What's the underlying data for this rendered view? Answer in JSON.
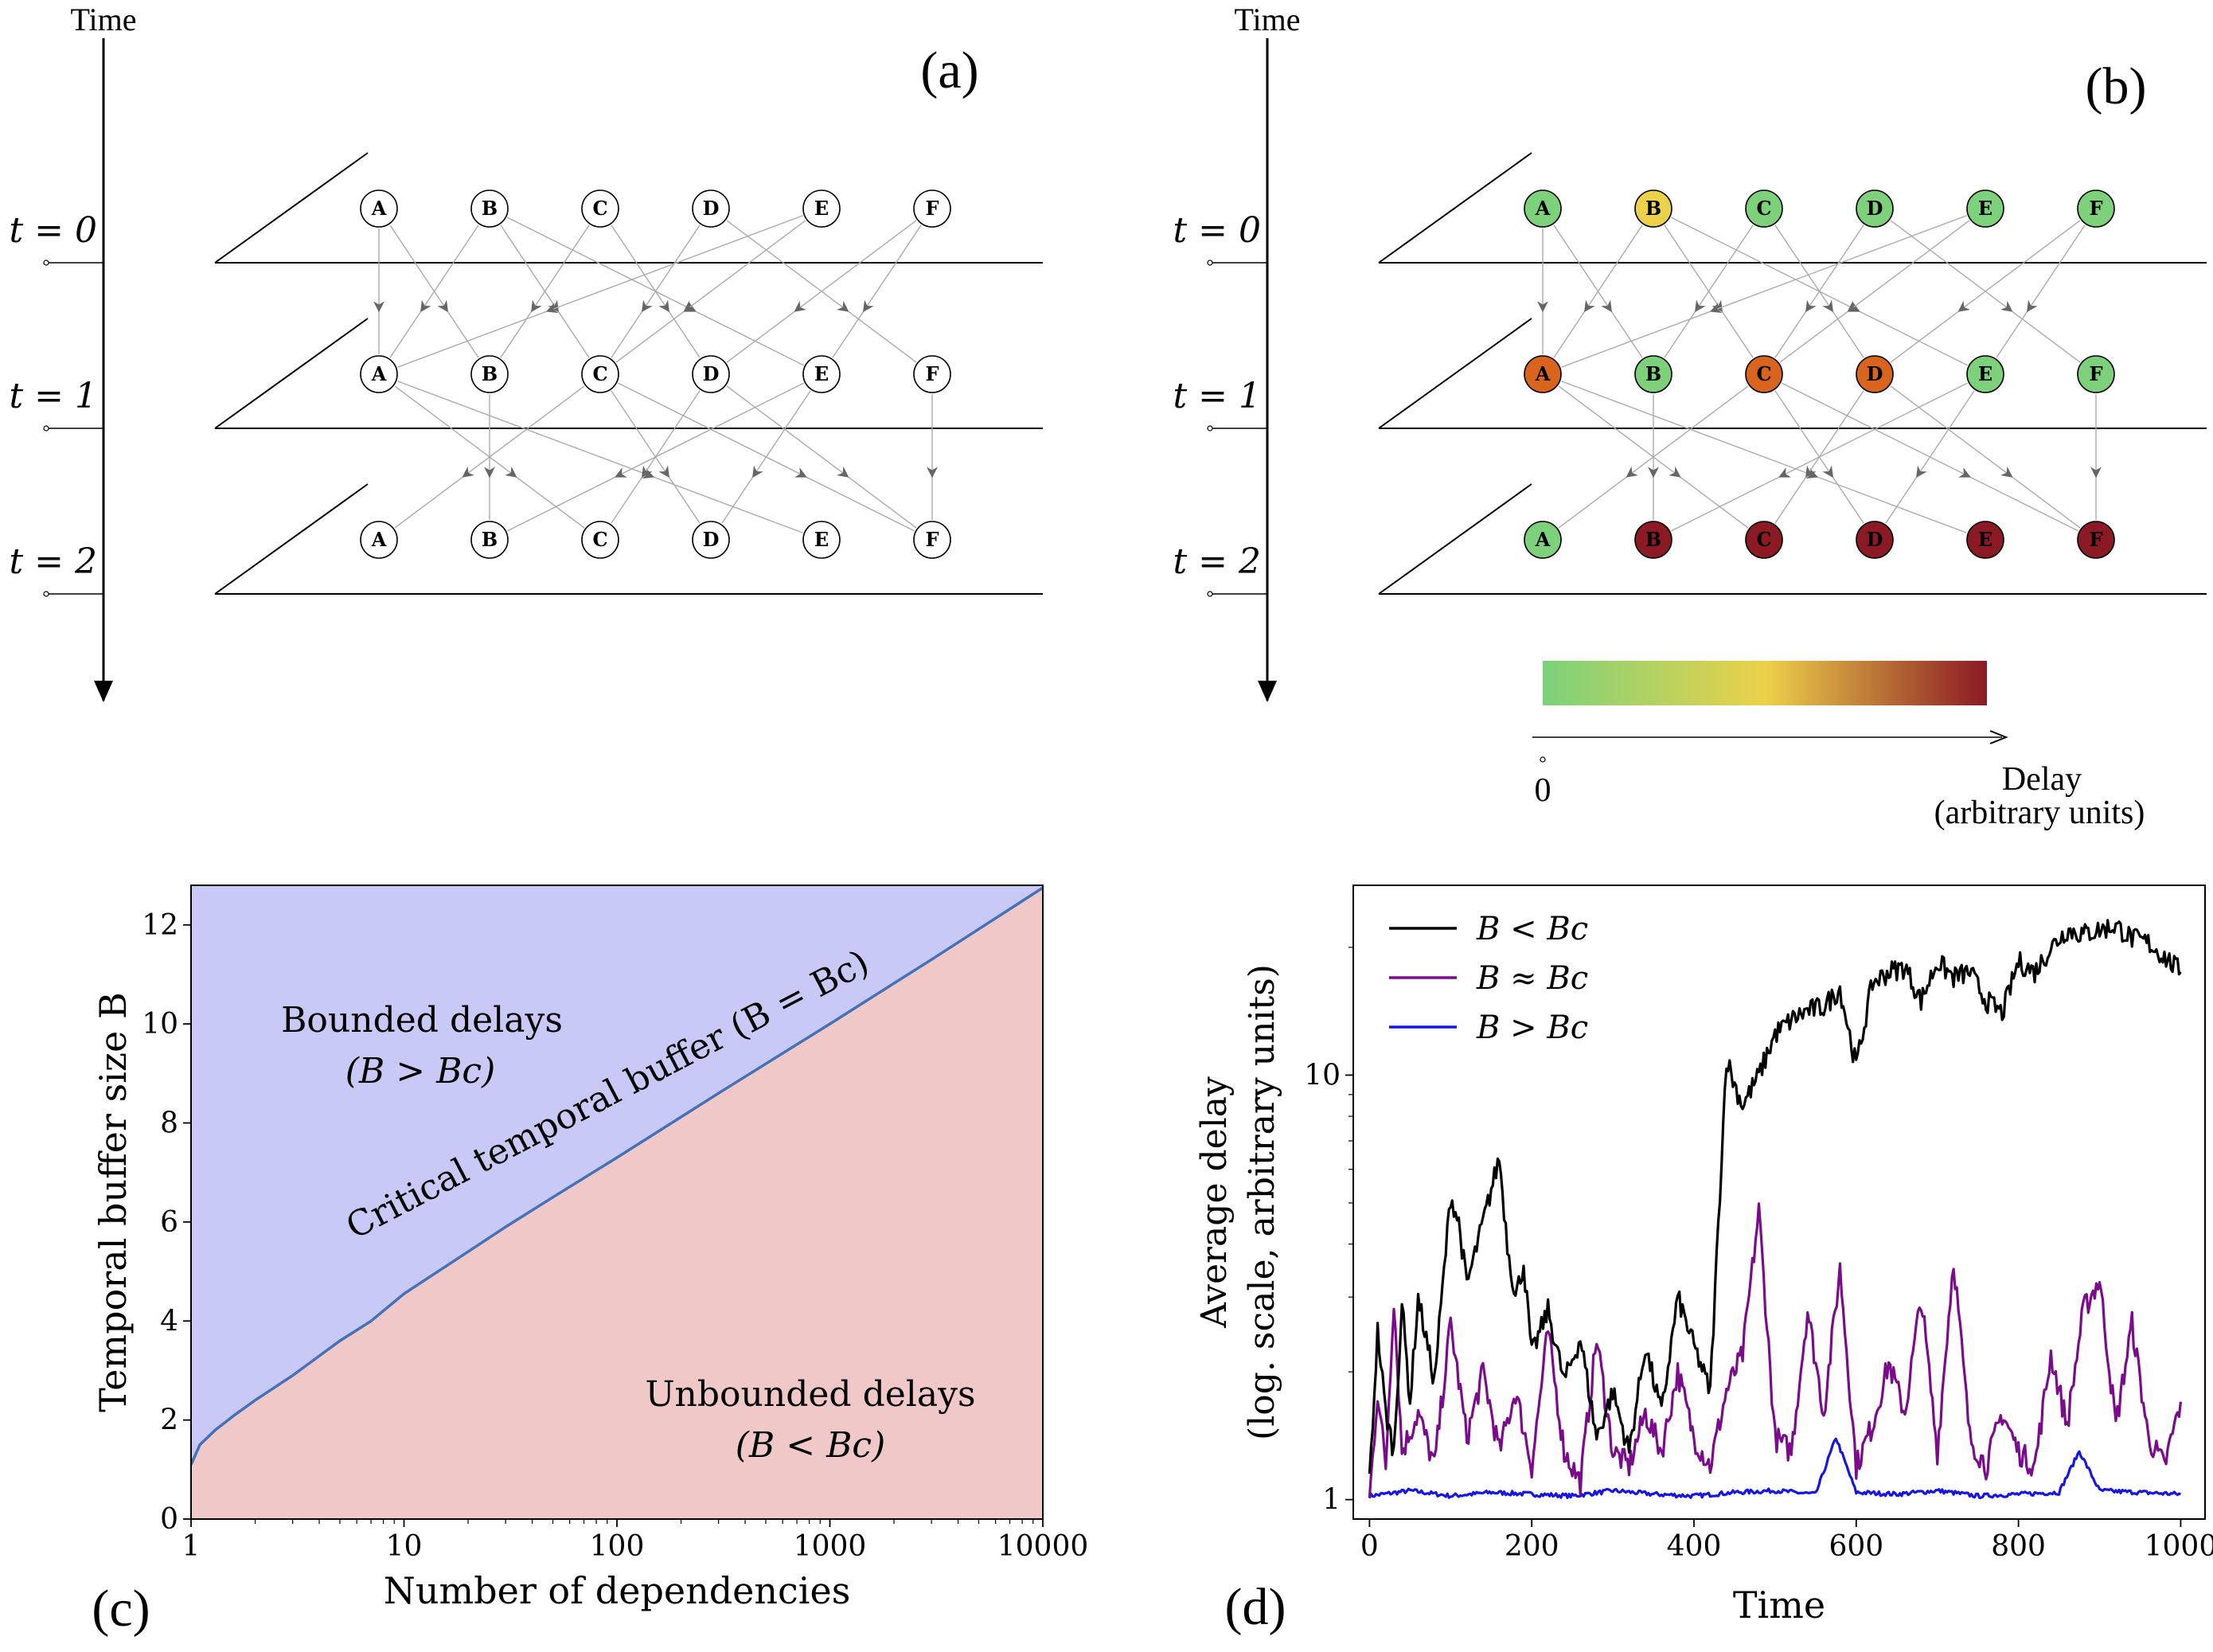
{
  "panel_a": {
    "label": "(a)",
    "time_axis_label": "Time",
    "rows": [
      "t = 0",
      "t = 1",
      "t = 2"
    ],
    "nodes": [
      "A",
      "B",
      "C",
      "D",
      "E",
      "F"
    ]
  },
  "panel_b": {
    "label": "(b)",
    "time_axis_label": "Time",
    "rows": [
      "t = 0",
      "t = 1",
      "t = 2"
    ],
    "nodes": [
      "A",
      "B",
      "C",
      "D",
      "E",
      "F"
    ],
    "node_colors": [
      [
        "#7cd17a",
        "#ecd14a",
        "#7cd17a",
        "#7cd17a",
        "#7cd17a",
        "#7cd17a"
      ],
      [
        "#d9641e",
        "#7cd17a",
        "#d9641e",
        "#d9641e",
        "#7cd17a",
        "#7cd17a"
      ],
      [
        "#7cd17a",
        "#8b1a25",
        "#8b1a25",
        "#8b1a25",
        "#8b1a25",
        "#8b1a25"
      ]
    ],
    "colorbar": {
      "stops": [
        "#7cd17a",
        "#ecd14a",
        "#8b1a25"
      ],
      "zero_label": "0",
      "axis_label_line1": "Delay",
      "axis_label_line2": "(arbitrary units)"
    }
  },
  "panel_c": {
    "label": "(c)",
    "region_upper_line1": "Bounded delays",
    "region_upper_line2": "(B > Bc)",
    "region_lower_line1": "Unbounded delays",
    "region_lower_line2": "(B < Bc)",
    "curve_label": "Critical temporal buffer (B = Bc)",
    "colors": {
      "upper": "#c9c9f7",
      "lower": "#f1c8c8",
      "curve": "#4472b8"
    }
  },
  "panel_d": {
    "label": "(d)",
    "legend": [
      "B < Bc",
      "B ≈ Bc",
      "B > Bc"
    ],
    "colors": {
      "black": "#000000",
      "purple": "#7b0a8c",
      "blue": "#1515e6"
    }
  },
  "chart_data": [
    {
      "type": "area",
      "xlabel": "Number of dependencies",
      "ylabel": "Temporal buffer size B",
      "x_scale": "log",
      "xlim": [
        1,
        10000
      ],
      "ylim": [
        0,
        12.8
      ],
      "x_ticks": [
        "1",
        "10",
        "100",
        "1000",
        "10000"
      ],
      "x_tick_values": [
        1,
        10,
        100,
        1000,
        10000
      ],
      "y_ticks": [
        "0",
        "2",
        "4",
        "6",
        "8",
        "10",
        "12"
      ],
      "y_tick_values": [
        0,
        2,
        4,
        6,
        8,
        10,
        12
      ],
      "series": [
        {
          "name": "Critical temporal buffer",
          "x": [
            1,
            1.1,
            1.3,
            1.6,
            2,
            3,
            5,
            7,
            10,
            20,
            30,
            50,
            100,
            300,
            1000,
            3000,
            10000
          ],
          "y": [
            1.1,
            1.5,
            1.8,
            2.1,
            2.4,
            2.9,
            3.6,
            4.0,
            4.55,
            5.4,
            5.9,
            6.5,
            7.3,
            8.6,
            10.0,
            11.3,
            12.75
          ]
        }
      ]
    },
    {
      "type": "line",
      "xlabel": "Time",
      "ylabel": "Average delay (log. scale, arbitrary units)",
      "y_scale": "log",
      "xlim": [
        -20,
        1030
      ],
      "ylim": [
        0.9,
        28
      ],
      "x_ticks": [
        "0",
        "200",
        "400",
        "600",
        "800",
        "1000"
      ],
      "x_tick_values": [
        0,
        200,
        400,
        600,
        800,
        1000
      ],
      "y_ticks": [
        "1",
        "10"
      ],
      "y_tick_values": [
        1,
        10
      ],
      "series": [
        {
          "name": "B < Bc",
          "x": [
            0,
            10,
            20,
            30,
            40,
            50,
            60,
            80,
            100,
            110,
            120,
            140,
            160,
            170,
            180,
            190,
            200,
            220,
            240,
            260,
            280,
            300,
            320,
            340,
            360,
            380,
            400,
            420,
            440,
            450,
            460,
            480,
            500,
            520,
            540,
            560,
            580,
            600,
            620,
            640,
            660,
            680,
            700,
            720,
            740,
            760,
            780,
            800,
            820,
            840,
            860,
            880,
            900,
            920,
            940,
            960,
            980,
            1000
          ],
          "y": [
            1.1,
            2.5,
            1.6,
            1.3,
            2.9,
            1.7,
            3.0,
            1.9,
            5.2,
            4.5,
            3.2,
            4.5,
            6.4,
            4.0,
            3.0,
            3.6,
            2.2,
            2.8,
            1.9,
            2.4,
            1.4,
            1.8,
            1.3,
            2.3,
            1.6,
            3.0,
            2.3,
            1.8,
            11.0,
            9.5,
            8.5,
            10.0,
            12.5,
            13.5,
            14.2,
            14.5,
            16.0,
            10.5,
            16.5,
            17.5,
            18.0,
            15.0,
            18.5,
            17.0,
            17.5,
            15.0,
            14.0,
            18.5,
            17.5,
            20.0,
            22.0,
            21.5,
            22.0,
            22.5,
            21.0,
            20.5,
            19.0,
            17.5
          ]
        },
        {
          "name": "B ≈ Bc",
          "x": [
            0,
            10,
            20,
            30,
            40,
            60,
            80,
            100,
            120,
            140,
            160,
            180,
            200,
            220,
            240,
            260,
            280,
            300,
            320,
            340,
            360,
            380,
            400,
            420,
            440,
            460,
            480,
            500,
            520,
            540,
            560,
            580,
            600,
            620,
            640,
            660,
            680,
            700,
            720,
            740,
            760,
            780,
            800,
            820,
            840,
            860,
            880,
            900,
            920,
            940,
            960,
            980,
            1000
          ],
          "y": [
            1.0,
            1.8,
            1.2,
            3.0,
            1.3,
            1.6,
            1.2,
            2.6,
            1.4,
            2.0,
            1.3,
            1.8,
            1.2,
            2.5,
            1.3,
            1.1,
            2.4,
            1.3,
            1.2,
            1.6,
            1.3,
            2.0,
            1.4,
            1.2,
            1.8,
            2.2,
            4.8,
            1.4,
            1.3,
            2.8,
            1.6,
            3.5,
            1.2,
            1.5,
            2.1,
            1.6,
            3.0,
            1.3,
            3.7,
            1.4,
            1.2,
            1.6,
            1.3,
            1.2,
            2.2,
            1.5,
            2.8,
            3.3,
            1.5,
            2.6,
            1.4,
            1.2,
            1.7
          ]
        },
        {
          "name": "B > Bc",
          "x": [
            0,
            50,
            100,
            150,
            200,
            250,
            300,
            350,
            400,
            450,
            500,
            550,
            575,
            600,
            650,
            700,
            750,
            800,
            850,
            875,
            900,
            950,
            1000
          ],
          "y": [
            1.02,
            1.05,
            1.02,
            1.04,
            1.03,
            1.02,
            1.05,
            1.03,
            1.02,
            1.04,
            1.05,
            1.03,
            1.4,
            1.04,
            1.03,
            1.05,
            1.02,
            1.03,
            1.04,
            1.3,
            1.05,
            1.04,
            1.03
          ]
        }
      ]
    }
  ]
}
